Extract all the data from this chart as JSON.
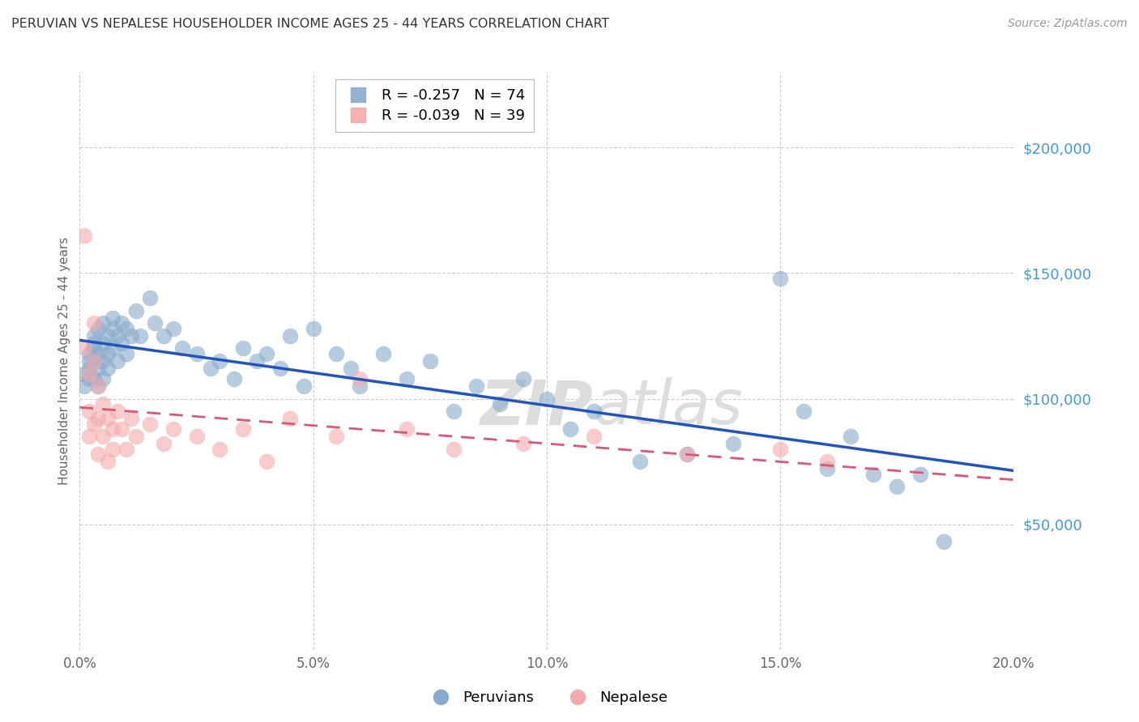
{
  "title": "PERUVIAN VS NEPALESE HOUSEHOLDER INCOME AGES 25 - 44 YEARS CORRELATION CHART",
  "source": "Source: ZipAtlas.com",
  "ylabel": "Householder Income Ages 25 - 44 years",
  "xlim": [
    0.0,
    0.2
  ],
  "ylim": [
    0,
    230000
  ],
  "yticks": [
    50000,
    100000,
    150000,
    200000
  ],
  "xticks": [
    0.0,
    0.05,
    0.1,
    0.15,
    0.2
  ],
  "peruvians_x": [
    0.001,
    0.001,
    0.002,
    0.002,
    0.002,
    0.002,
    0.003,
    0.003,
    0.003,
    0.003,
    0.003,
    0.004,
    0.004,
    0.004,
    0.004,
    0.005,
    0.005,
    0.005,
    0.005,
    0.006,
    0.006,
    0.006,
    0.007,
    0.007,
    0.007,
    0.008,
    0.008,
    0.009,
    0.009,
    0.01,
    0.01,
    0.011,
    0.012,
    0.013,
    0.015,
    0.016,
    0.018,
    0.02,
    0.022,
    0.025,
    0.028,
    0.03,
    0.033,
    0.035,
    0.038,
    0.04,
    0.043,
    0.045,
    0.048,
    0.05,
    0.055,
    0.058,
    0.06,
    0.065,
    0.07,
    0.075,
    0.08,
    0.085,
    0.09,
    0.095,
    0.1,
    0.105,
    0.11,
    0.12,
    0.13,
    0.14,
    0.15,
    0.155,
    0.16,
    0.165,
    0.17,
    0.175,
    0.18,
    0.185
  ],
  "peruvians_y": [
    110000,
    105000,
    115000,
    108000,
    118000,
    112000,
    120000,
    115000,
    108000,
    122000,
    125000,
    118000,
    112000,
    105000,
    128000,
    122000,
    130000,
    115000,
    108000,
    125000,
    118000,
    112000,
    132000,
    128000,
    120000,
    125000,
    115000,
    130000,
    122000,
    128000,
    118000,
    125000,
    135000,
    125000,
    140000,
    130000,
    125000,
    128000,
    120000,
    118000,
    112000,
    115000,
    108000,
    120000,
    115000,
    118000,
    112000,
    125000,
    105000,
    128000,
    118000,
    112000,
    105000,
    118000,
    108000,
    115000,
    95000,
    105000,
    98000,
    108000,
    100000,
    88000,
    95000,
    75000,
    78000,
    82000,
    148000,
    95000,
    72000,
    85000,
    70000,
    65000,
    70000,
    43000
  ],
  "nepalese_x": [
    0.001,
    0.001,
    0.002,
    0.002,
    0.002,
    0.003,
    0.003,
    0.003,
    0.004,
    0.004,
    0.004,
    0.005,
    0.005,
    0.006,
    0.006,
    0.007,
    0.007,
    0.008,
    0.009,
    0.01,
    0.011,
    0.012,
    0.015,
    0.018,
    0.02,
    0.025,
    0.03,
    0.035,
    0.04,
    0.045,
    0.055,
    0.06,
    0.07,
    0.08,
    0.095,
    0.11,
    0.13,
    0.15,
    0.16
  ],
  "nepalese_y": [
    165000,
    120000,
    110000,
    95000,
    85000,
    130000,
    115000,
    90000,
    105000,
    92000,
    78000,
    98000,
    85000,
    92000,
    75000,
    88000,
    80000,
    95000,
    88000,
    80000,
    92000,
    85000,
    90000,
    82000,
    88000,
    85000,
    80000,
    88000,
    75000,
    92000,
    85000,
    108000,
    88000,
    80000,
    82000,
    85000,
    78000,
    80000,
    75000
  ],
  "peruvians_R": -0.257,
  "peruvians_N": 74,
  "nepalese_R": -0.039,
  "nepalese_N": 39,
  "blue_scatter_color": "#89AACC",
  "pink_scatter_color": "#F4AAAA",
  "blue_line_color": "#2255BB",
  "pink_line_color": "#DD5577",
  "title_color": "#333333",
  "source_color": "#999999",
  "ytick_color": "#4499DD",
  "xtick_color": "#666666",
  "watermark_color": "#DDDDDD",
  "background_color": "#FFFFFF",
  "grid_color": "#CCCCCC",
  "legend_edge_color": "#AAAAAA"
}
